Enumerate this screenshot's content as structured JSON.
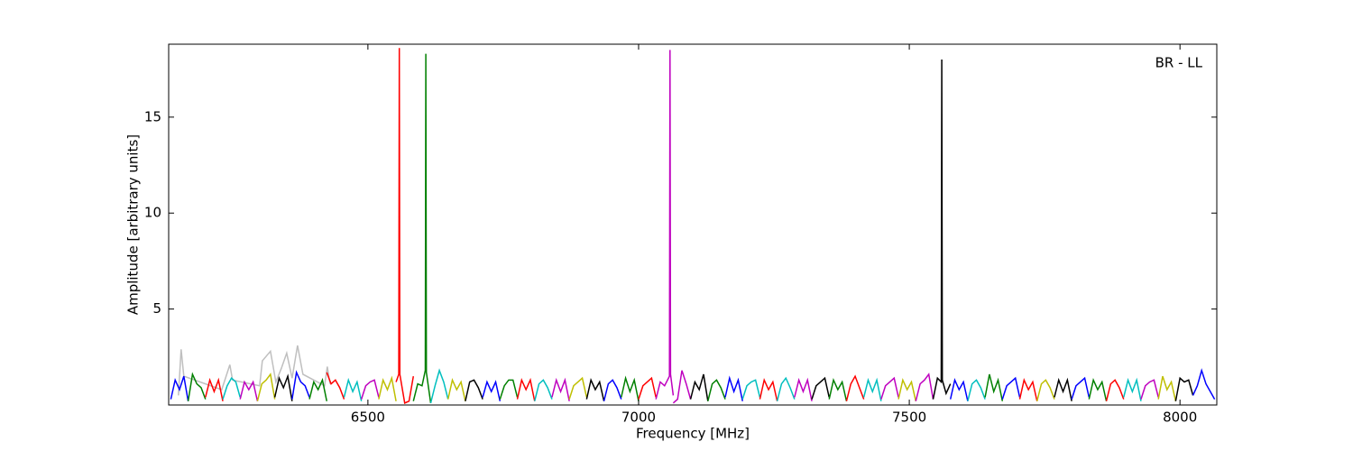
{
  "chart_data": {
    "type": "line",
    "x_label": "Frequency [MHz]",
    "y_label": "Amplitude [arbitrary units]",
    "annotation": "BR - LL",
    "xlim": [
      6132,
      8068
    ],
    "ylim": [
      0,
      18.8
    ],
    "xticks": [
      6500,
      7000,
      7500,
      8000
    ],
    "yticks": [
      5,
      10,
      15
    ],
    "series": [
      {
        "color": "#bfbfbf",
        "x": [
          6150,
          6155,
          6160,
          6230,
          6245,
          6250,
          6300,
          6305,
          6320,
          6330,
          6340,
          6350,
          6360,
          6370,
          6380,
          6420,
          6425,
          6430
        ],
        "values": [
          0.5,
          2.9,
          1.5,
          0.8,
          2.1,
          1.3,
          1.0,
          2.3,
          2.8,
          1.2,
          1.9,
          2.7,
          1.4,
          3.1,
          1.6,
          1.0,
          2.0,
          1.1
        ]
      },
      {
        "color": "#0000ff",
        "x": [
          6136,
          6144,
          6152,
          6160,
          6168
        ],
        "values": [
          0.3,
          1.3,
          0.8,
          1.5,
          0.2
        ]
      },
      {
        "color": "#008000",
        "x": [
          6168,
          6176,
          6184,
          6192,
          6200
        ],
        "values": [
          0.2,
          1.6,
          1.1,
          0.9,
          0.3
        ]
      },
      {
        "color": "#ff0000",
        "x": [
          6200,
          6208,
          6216,
          6224,
          6232
        ],
        "values": [
          0.4,
          1.3,
          0.7,
          1.3,
          0.2
        ]
      },
      {
        "color": "#00bfbf",
        "x": [
          6232,
          6240,
          6248,
          6256,
          6264
        ],
        "values": [
          0.3,
          1.0,
          1.4,
          1.2,
          0.4
        ]
      },
      {
        "color": "#bf00bf",
        "x": [
          6264,
          6272,
          6280,
          6288,
          6296
        ],
        "values": [
          0.3,
          1.2,
          0.8,
          1.2,
          0.2
        ]
      },
      {
        "color": "#bfbf00",
        "x": [
          6296,
          6304,
          6312,
          6320,
          6328
        ],
        "values": [
          0.2,
          1.1,
          1.3,
          1.6,
          0.3
        ]
      },
      {
        "color": "#000000",
        "x": [
          6328,
          6336,
          6344,
          6352,
          6360
        ],
        "values": [
          0.4,
          1.4,
          0.9,
          1.5,
          0.2
        ]
      },
      {
        "color": "#0000ff",
        "x": [
          6360,
          6368,
          6376,
          6384,
          6392
        ],
        "values": [
          0.3,
          1.7,
          1.2,
          1.0,
          0.4
        ]
      },
      {
        "color": "#008000",
        "x": [
          6392,
          6400,
          6408,
          6416,
          6424
        ],
        "values": [
          0.3,
          1.2,
          0.8,
          1.3,
          0.2
        ]
      },
      {
        "color": "#ff0000",
        "x": [
          6424,
          6432,
          6440,
          6448,
          6456
        ],
        "values": [
          1.7,
          1.1,
          1.3,
          0.9,
          0.3
        ]
      },
      {
        "color": "#00bfbf",
        "x": [
          6456,
          6464,
          6472,
          6480,
          6488
        ],
        "values": [
          0.4,
          1.3,
          0.7,
          1.2,
          0.2
        ]
      },
      {
        "color": "#bf00bf",
        "x": [
          6488,
          6496,
          6504,
          6512,
          6520
        ],
        "values": [
          0.3,
          1.0,
          1.2,
          1.3,
          0.4
        ]
      },
      {
        "color": "#bfbf00",
        "x": [
          6520,
          6528,
          6536,
          6544,
          6552
        ],
        "values": [
          0.3,
          1.3,
          0.8,
          1.4,
          0.2
        ]
      },
      {
        "color": "#ff0000",
        "x": [
          6552,
          6557,
          6558,
          6559,
          6568,
          6576,
          6584
        ],
        "values": [
          1.2,
          1.6,
          18.6,
          1.6,
          0.1,
          0.2,
          1.5
        ]
      },
      {
        "color": "#008000",
        "x": [
          6584,
          6592,
          6600,
          6606,
          6607,
          6608,
          6616
        ],
        "values": [
          0.2,
          1.1,
          1.0,
          1.8,
          18.3,
          1.7,
          0.1
        ]
      },
      {
        "color": "#00bfbf",
        "x": [
          6616,
          6624,
          6632,
          6640,
          6648
        ],
        "values": [
          0.1,
          1.0,
          1.8,
          1.2,
          0.3
        ]
      },
      {
        "color": "#bfbf00",
        "x": [
          6648,
          6656,
          6664,
          6672,
          6680
        ],
        "values": [
          0.3,
          1.3,
          0.8,
          1.2,
          0.2
        ]
      },
      {
        "color": "#000000",
        "x": [
          6680,
          6688,
          6696,
          6704,
          6712
        ],
        "values": [
          0.2,
          1.2,
          1.3,
          0.9,
          0.3
        ]
      },
      {
        "color": "#0000ff",
        "x": [
          6712,
          6720,
          6728,
          6736,
          6744
        ],
        "values": [
          0.4,
          1.2,
          0.7,
          1.2,
          0.2
        ]
      },
      {
        "color": "#008000",
        "x": [
          6744,
          6752,
          6760,
          6768,
          6776
        ],
        "values": [
          0.3,
          1.0,
          1.3,
          1.3,
          0.4
        ]
      },
      {
        "color": "#ff0000",
        "x": [
          6776,
          6784,
          6792,
          6800,
          6808
        ],
        "values": [
          0.3,
          1.3,
          0.8,
          1.3,
          0.2
        ]
      },
      {
        "color": "#00bfbf",
        "x": [
          6808,
          6816,
          6824,
          6832,
          6840
        ],
        "values": [
          0.2,
          1.1,
          1.3,
          0.9,
          0.3
        ]
      },
      {
        "color": "#bf00bf",
        "x": [
          6840,
          6848,
          6856,
          6864,
          6872
        ],
        "values": [
          0.4,
          1.3,
          0.7,
          1.3,
          0.2
        ]
      },
      {
        "color": "#bfbf00",
        "x": [
          6872,
          6880,
          6888,
          6896,
          6904
        ],
        "values": [
          0.3,
          1.0,
          1.2,
          1.4,
          0.4
        ]
      },
      {
        "color": "#000000",
        "x": [
          6904,
          6912,
          6920,
          6928,
          6936
        ],
        "values": [
          0.3,
          1.3,
          0.8,
          1.2,
          0.2
        ]
      },
      {
        "color": "#0000ff",
        "x": [
          6936,
          6944,
          6952,
          6960,
          6968
        ],
        "values": [
          0.2,
          1.1,
          1.3,
          0.9,
          0.3
        ]
      },
      {
        "color": "#008000",
        "x": [
          6968,
          6976,
          6984,
          6992,
          7000
        ],
        "values": [
          0.4,
          1.4,
          0.7,
          1.3,
          0.2
        ]
      },
      {
        "color": "#ff0000",
        "x": [
          7000,
          7008,
          7016,
          7024,
          7032
        ],
        "values": [
          0.3,
          1.0,
          1.2,
          1.4,
          0.4
        ]
      },
      {
        "color": "#bf00bf",
        "x": [
          7032,
          7040,
          7048,
          7057,
          7058,
          7059,
          7064
        ],
        "values": [
          0.3,
          1.2,
          1.0,
          1.5,
          18.5,
          1.6,
          0.5
        ]
      },
      {
        "color": "#bf00bf",
        "x": [
          7064,
          7072,
          7080,
          7088,
          7096
        ],
        "values": [
          0.1,
          0.3,
          1.8,
          1.1,
          0.3
        ]
      },
      {
        "color": "#000000",
        "x": [
          7096,
          7104,
          7112,
          7120,
          7128
        ],
        "values": [
          0.3,
          1.2,
          0.8,
          1.6,
          0.2
        ]
      },
      {
        "color": "#008000",
        "x": [
          7128,
          7136,
          7144,
          7152,
          7160
        ],
        "values": [
          0.2,
          1.1,
          1.3,
          0.9,
          0.3
        ]
      },
      {
        "color": "#0000ff",
        "x": [
          7160,
          7168,
          7176,
          7184,
          7192
        ],
        "values": [
          0.4,
          1.4,
          0.7,
          1.3,
          0.2
        ]
      },
      {
        "color": "#00bfbf",
        "x": [
          7192,
          7200,
          7208,
          7216,
          7224
        ],
        "values": [
          0.3,
          1.0,
          1.2,
          1.3,
          0.4
        ]
      },
      {
        "color": "#ff0000",
        "x": [
          7224,
          7232,
          7240,
          7248,
          7256
        ],
        "values": [
          0.3,
          1.3,
          0.8,
          1.2,
          0.2
        ]
      },
      {
        "color": "#00bfbf",
        "x": [
          7256,
          7264,
          7272,
          7280,
          7288
        ],
        "values": [
          0.2,
          1.1,
          1.4,
          0.9,
          0.3
        ]
      },
      {
        "color": "#bf00bf",
        "x": [
          7288,
          7296,
          7304,
          7312,
          7320
        ],
        "values": [
          0.4,
          1.3,
          0.7,
          1.3,
          0.2
        ]
      },
      {
        "color": "#000000",
        "x": [
          7320,
          7328,
          7336,
          7344,
          7352
        ],
        "values": [
          0.3,
          1.0,
          1.2,
          1.4,
          0.4
        ]
      },
      {
        "color": "#008000",
        "x": [
          7352,
          7360,
          7368,
          7376,
          7384
        ],
        "values": [
          0.3,
          1.3,
          0.8,
          1.2,
          0.2
        ]
      },
      {
        "color": "#ff0000",
        "x": [
          7384,
          7392,
          7400,
          7408,
          7416
        ],
        "values": [
          0.2,
          1.1,
          1.5,
          0.9,
          0.3
        ]
      },
      {
        "color": "#00bfbf",
        "x": [
          7416,
          7424,
          7432,
          7440,
          7448
        ],
        "values": [
          0.4,
          1.3,
          0.7,
          1.3,
          0.2
        ]
      },
      {
        "color": "#bf00bf",
        "x": [
          7448,
          7456,
          7464,
          7472,
          7480
        ],
        "values": [
          0.3,
          1.0,
          1.2,
          1.4,
          0.4
        ]
      },
      {
        "color": "#bfbf00",
        "x": [
          7480,
          7488,
          7496,
          7504,
          7512
        ],
        "values": [
          0.3,
          1.3,
          0.8,
          1.2,
          0.2
        ]
      },
      {
        "color": "#bf00bf",
        "x": [
          7512,
          7520,
          7528,
          7536,
          7544
        ],
        "values": [
          0.2,
          1.1,
          1.3,
          1.6,
          0.3
        ]
      },
      {
        "color": "#000000",
        "x": [
          7544,
          7552,
          7559,
          7560,
          7561,
          7568,
          7576
        ],
        "values": [
          0.3,
          1.4,
          1.2,
          18.0,
          1.3,
          0.6,
          1.1
        ]
      },
      {
        "color": "#0000ff",
        "x": [
          7576,
          7584,
          7592,
          7600,
          7608
        ],
        "values": [
          0.3,
          1.3,
          0.8,
          1.2,
          0.2
        ]
      },
      {
        "color": "#00bfbf",
        "x": [
          7608,
          7616,
          7624,
          7632,
          7640
        ],
        "values": [
          0.2,
          1.1,
          1.3,
          0.9,
          0.3
        ]
      },
      {
        "color": "#008000",
        "x": [
          7640,
          7648,
          7656,
          7664,
          7672
        ],
        "values": [
          0.4,
          1.6,
          0.7,
          1.3,
          0.2
        ]
      },
      {
        "color": "#0000ff",
        "x": [
          7672,
          7680,
          7688,
          7696,
          7704
        ],
        "values": [
          0.3,
          1.0,
          1.2,
          1.4,
          0.4
        ]
      },
      {
        "color": "#ff0000",
        "x": [
          7704,
          7712,
          7720,
          7728,
          7736
        ],
        "values": [
          0.3,
          1.3,
          0.8,
          1.2,
          0.2
        ]
      },
      {
        "color": "#bfbf00",
        "x": [
          7736,
          7744,
          7752,
          7760,
          7768
        ],
        "values": [
          0.2,
          1.1,
          1.3,
          0.9,
          0.3
        ]
      },
      {
        "color": "#000000",
        "x": [
          7768,
          7776,
          7784,
          7792,
          7800
        ],
        "values": [
          0.4,
          1.3,
          0.7,
          1.3,
          0.2
        ]
      },
      {
        "color": "#0000ff",
        "x": [
          7800,
          7808,
          7816,
          7824,
          7832
        ],
        "values": [
          0.3,
          1.0,
          1.2,
          1.4,
          0.4
        ]
      },
      {
        "color": "#008000",
        "x": [
          7832,
          7840,
          7848,
          7856,
          7864
        ],
        "values": [
          0.3,
          1.3,
          0.8,
          1.2,
          0.2
        ]
      },
      {
        "color": "#ff0000",
        "x": [
          7864,
          7872,
          7880,
          7888,
          7896
        ],
        "values": [
          0.2,
          1.1,
          1.3,
          0.9,
          0.3
        ]
      },
      {
        "color": "#00bfbf",
        "x": [
          7896,
          7904,
          7912,
          7920,
          7928
        ],
        "values": [
          0.4,
          1.3,
          0.7,
          1.3,
          0.2
        ]
      },
      {
        "color": "#bf00bf",
        "x": [
          7928,
          7936,
          7944,
          7952,
          7960
        ],
        "values": [
          0.3,
          1.0,
          1.2,
          1.3,
          0.4
        ]
      },
      {
        "color": "#bfbf00",
        "x": [
          7960,
          7968,
          7976,
          7984,
          7992
        ],
        "values": [
          0.3,
          1.5,
          0.8,
          1.2,
          0.2
        ]
      },
      {
        "color": "#000000",
        "x": [
          7992,
          8000,
          8008,
          8016,
          8024
        ],
        "values": [
          0.2,
          1.4,
          1.2,
          1.3,
          0.5
        ]
      },
      {
        "color": "#0000ff",
        "x": [
          8024,
          8032,
          8040,
          8048,
          8064
        ],
        "values": [
          0.5,
          1.0,
          1.8,
          1.1,
          0.3
        ]
      }
    ]
  }
}
